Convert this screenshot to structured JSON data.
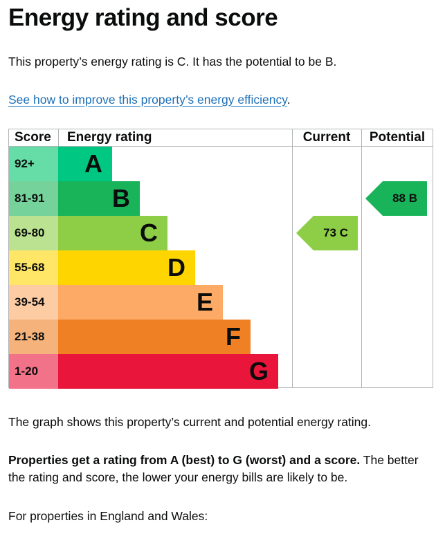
{
  "page": {
    "title": "Energy rating and score",
    "summary": "This property’s energy rating is C. It has the potential to be B.",
    "link_text": "See how to improve this property’s energy efficiency",
    "link_suffix": ".",
    "graph_text": "The graph shows this property’s current and potential energy rating.",
    "bold_text": "Properties get a rating from A (best) to G (worst) and a score.",
    "rest_text": " The better the rating and score, the lower your energy bills are likely to be.",
    "england_text": "For properties in England and Wales:"
  },
  "chart_data": {
    "type": "table",
    "headers": {
      "score": "Score",
      "rating": "Energy rating",
      "current": "Current",
      "potential": "Potential"
    },
    "bands": [
      {
        "letter": "A",
        "range": "92+",
        "color": "#00c781",
        "score_bg": "#66dda7"
      },
      {
        "letter": "B",
        "range": "81-91",
        "color": "#19b459",
        "score_bg": "#75d29b"
      },
      {
        "letter": "C",
        "range": "69-80",
        "color": "#8dce46",
        "score_bg": "#bbe290"
      },
      {
        "letter": "D",
        "range": "55-68",
        "color": "#ffd500",
        "score_bg": "#ffe666"
      },
      {
        "letter": "E",
        "range": "39-54",
        "color": "#fcaa65",
        "score_bg": "#fdcca3"
      },
      {
        "letter": "F",
        "range": "21-38",
        "color": "#ef8023",
        "score_bg": "#f5b37b"
      },
      {
        "letter": "G",
        "range": "1-20",
        "color": "#e9153b",
        "score_bg": "#f27389"
      }
    ],
    "current": {
      "score": 73,
      "letter": "C",
      "label": "73 C",
      "color": "#8dce46"
    },
    "potential": {
      "score": 88,
      "letter": "B",
      "label": "88 B",
      "color": "#19b459"
    }
  }
}
